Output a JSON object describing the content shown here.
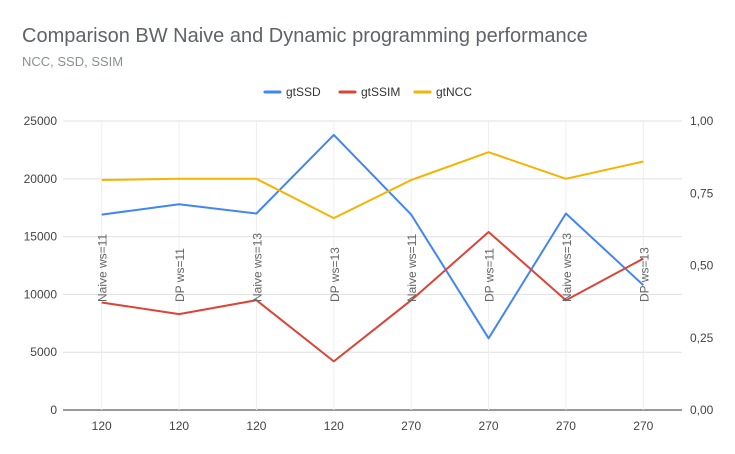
{
  "chart_data": {
    "type": "line",
    "title": "Comparison BW Naive and Dynamic programming performance",
    "subtitle": "NCC, SSD, SSIM",
    "categories": [
      "120",
      "120",
      "120",
      "120",
      "270",
      "270",
      "270",
      "270"
    ],
    "annotations": [
      "Naive ws=11",
      "DP ws=11",
      "Naive ws=13",
      "DP ws=13",
      "Naive ws=11",
      "DP ws=11",
      "Naive ws=13",
      "DP ws=13"
    ],
    "left_axis": {
      "ylim": [
        0,
        25000
      ],
      "ticks": [
        "0",
        "5000",
        "10000",
        "15000",
        "20000",
        "25000"
      ]
    },
    "right_axis": {
      "ylim": [
        0,
        1
      ],
      "ticks": [
        "0,00",
        "0,25",
        "0,50",
        "0,75",
        "1,00"
      ]
    },
    "legend_position": "top-center",
    "gridlines": true,
    "series": [
      {
        "name": "gtSSD",
        "axis": "left",
        "color": "#4285f4",
        "values": [
          16900,
          17800,
          17000,
          23800,
          16900,
          6200,
          17000,
          10800
        ]
      },
      {
        "name": "gtSSIM",
        "axis": "left",
        "color": "#db4437",
        "values": [
          9300,
          8300,
          9500,
          4200,
          9500,
          15400,
          9500,
          13100
        ]
      },
      {
        "name": "gtNCC",
        "axis": "left",
        "color": "#f4b400",
        "values": [
          19900,
          20000,
          20000,
          16600,
          19900,
          22300,
          20000,
          21500
        ]
      }
    ]
  }
}
